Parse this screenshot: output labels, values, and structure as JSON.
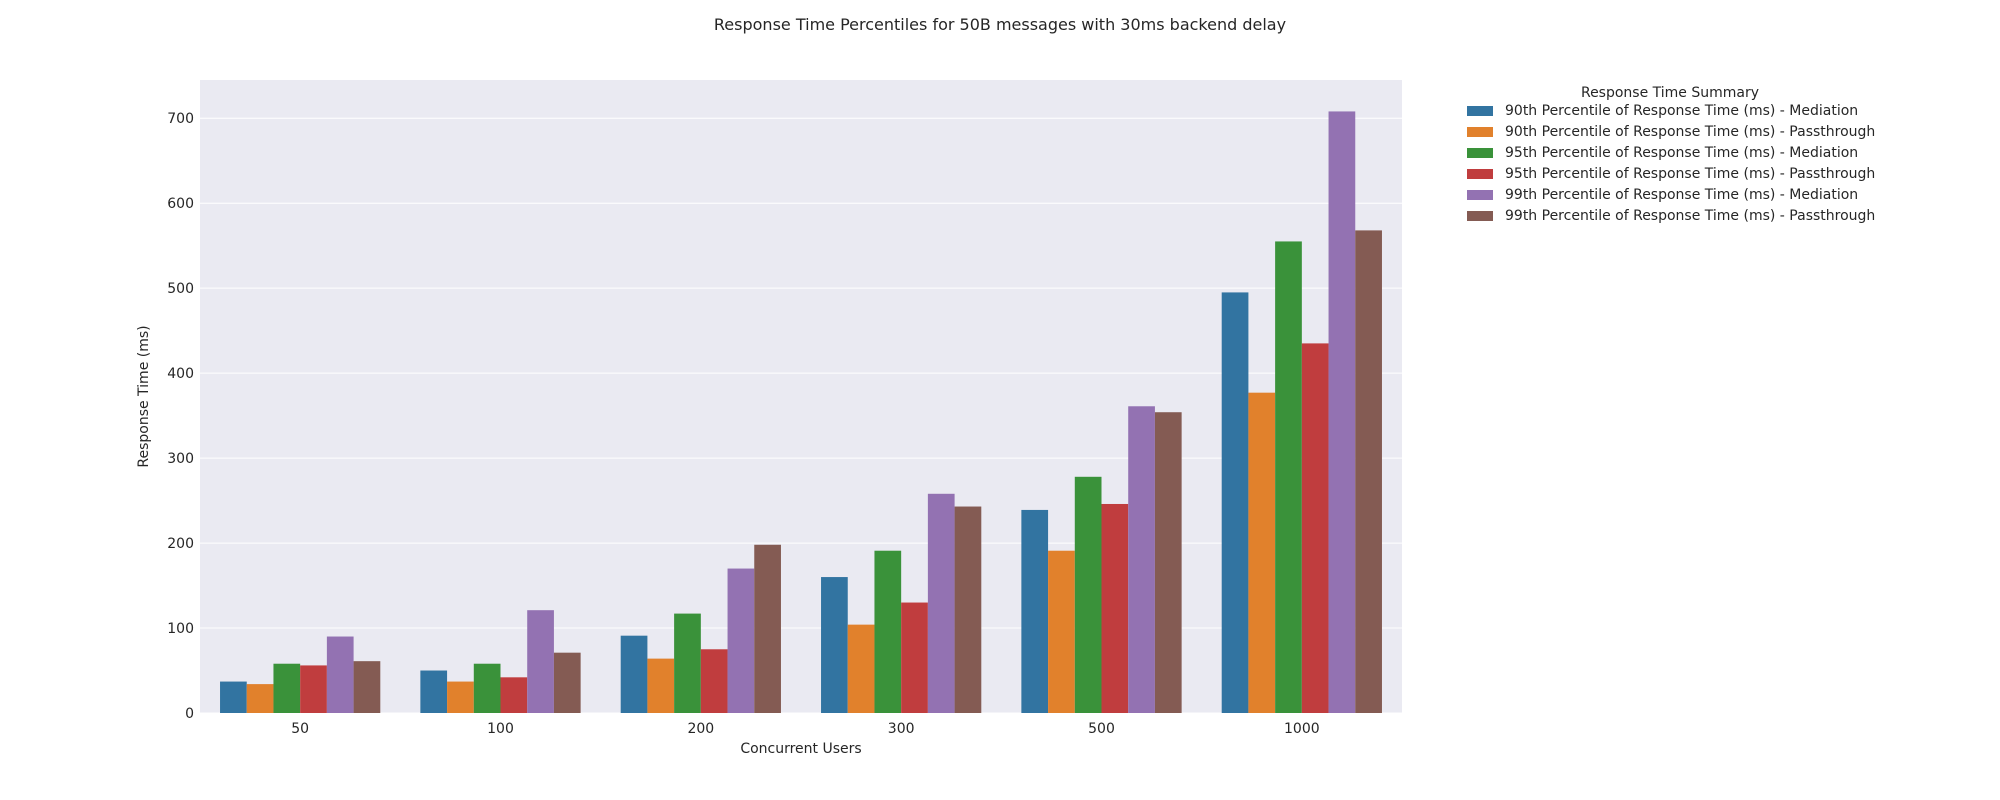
{
  "chart_data": {
    "type": "bar",
    "title": "Response Time Percentiles for 50B messages with 30ms backend delay",
    "xlabel": "Concurrent Users",
    "ylabel": "Response Time (ms)",
    "ylim": [
      0,
      745
    ],
    "yticks": [
      0,
      100,
      200,
      300,
      400,
      500,
      600,
      700
    ],
    "grid": true,
    "legend_title": "Response Time Summary",
    "legend_position": "outside-top-right",
    "categories": [
      "50",
      "100",
      "200",
      "300",
      "500",
      "1000"
    ],
    "series": [
      {
        "name": "90th Percentile of Response Time (ms) - Mediation",
        "color": "#3274a1",
        "values": [
          37,
          50,
          91,
          160,
          239,
          495
        ]
      },
      {
        "name": "90th Percentile of Response Time (ms) - Passthrough",
        "color": "#e1812c",
        "values": [
          34,
          37,
          64,
          104,
          191,
          377
        ]
      },
      {
        "name": "95th Percentile of Response Time (ms) - Mediation",
        "color": "#3a923a",
        "values": [
          58,
          58,
          117,
          191,
          278,
          555
        ]
      },
      {
        "name": "95th Percentile of Response Time (ms) - Passthrough",
        "color": "#c03d3e",
        "values": [
          56,
          42,
          75,
          130,
          246,
          435
        ]
      },
      {
        "name": "99th Percentile of Response Time (ms) - Mediation",
        "color": "#9372b2",
        "values": [
          90,
          121,
          170,
          258,
          361,
          708
        ]
      },
      {
        "name": "99th Percentile of Response Time (ms) - Passthrough",
        "color": "#845b53",
        "values": [
          61,
          71,
          198,
          243,
          354,
          568
        ]
      }
    ]
  }
}
